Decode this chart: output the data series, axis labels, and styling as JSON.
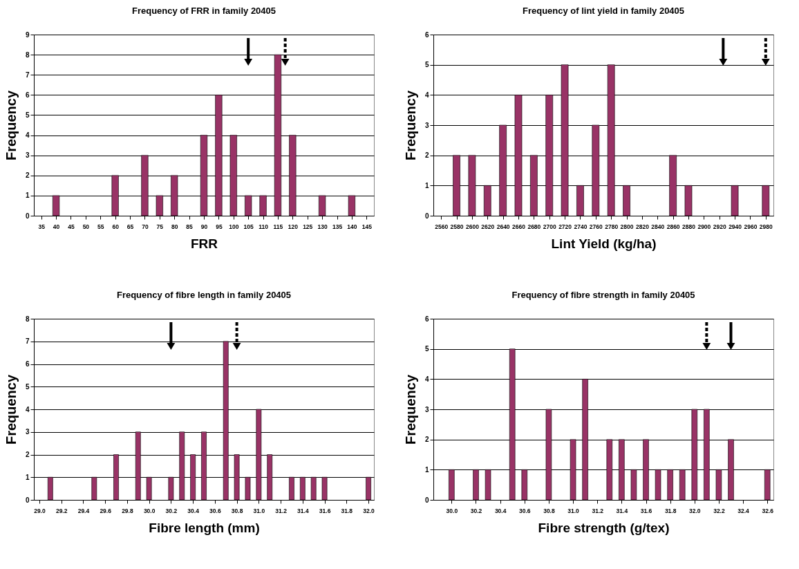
{
  "chart_data": [
    {
      "type": "bar",
      "title": "Frequency of FRR in family 20405",
      "xlabel": "FRR",
      "ylabel": "Frequency",
      "color": "#993366",
      "grid": "y",
      "x": [
        40,
        60,
        70,
        75,
        80,
        90,
        95,
        100,
        105,
        110,
        115,
        120,
        130,
        140
      ],
      "values": [
        1,
        2,
        3,
        1,
        2,
        4,
        6,
        4,
        1,
        1,
        8,
        4,
        1,
        1
      ],
      "xlim": [
        32.5,
        147.5
      ],
      "xticks": [
        35,
        40,
        45,
        50,
        55,
        60,
        65,
        70,
        75,
        80,
        85,
        90,
        95,
        100,
        105,
        110,
        115,
        120,
        125,
        130,
        135,
        140,
        145
      ],
      "ylim": [
        0,
        9
      ],
      "yticks": [
        0,
        1,
        2,
        3,
        4,
        5,
        6,
        7,
        8,
        9
      ],
      "ref_lines": [
        {
          "axis": "x",
          "value": 105,
          "line_style": "solid"
        },
        {
          "axis": "x",
          "value": 117.5,
          "line_style": "dashed"
        }
      ]
    },
    {
      "type": "bar",
      "title": "Frequency of lint yield in family 20405",
      "xlabel": "Lint Yield (kg/ha)",
      "ylabel": "Frequency",
      "color": "#993366",
      "grid": "y",
      "x": [
        2580,
        2600,
        2620,
        2640,
        2660,
        2680,
        2700,
        2720,
        2740,
        2760,
        2780,
        2800,
        2860,
        2880,
        2940,
        2980
      ],
      "values": [
        2,
        2,
        1,
        3,
        4,
        2,
        4,
        5,
        1,
        3,
        5,
        1,
        2,
        1,
        1,
        1
      ],
      "xlim": [
        2550,
        2990
      ],
      "xticks": [
        2560,
        2580,
        2600,
        2620,
        2640,
        2660,
        2680,
        2700,
        2720,
        2740,
        2760,
        2780,
        2800,
        2820,
        2840,
        2860,
        2880,
        2900,
        2920,
        2940,
        2960,
        2980
      ],
      "ylim": [
        0,
        6
      ],
      "yticks": [
        0,
        1,
        2,
        3,
        4,
        5,
        6
      ],
      "ref_lines": [
        {
          "axis": "x",
          "value": 2925,
          "line_style": "solid"
        },
        {
          "axis": "x",
          "value": 2980,
          "line_style": "dashed"
        }
      ]
    },
    {
      "type": "bar",
      "title": "Frequency of fibre length in family 20405",
      "xlabel": "Fibre length (mm)",
      "ylabel": "Frequency",
      "color": "#993366",
      "grid": "y",
      "x": [
        29.1,
        29.5,
        29.7,
        29.9,
        30.0,
        30.2,
        30.3,
        30.4,
        30.5,
        30.7,
        30.8,
        30.9,
        31.0,
        31.1,
        31.3,
        31.4,
        31.5,
        31.6,
        32.0
      ],
      "values": [
        1,
        1,
        2,
        3,
        1,
        1,
        3,
        2,
        3,
        7,
        2,
        1,
        4,
        2,
        1,
        1,
        1,
        1,
        1
      ],
      "xlim": [
        28.95,
        32.05
      ],
      "xticks": [
        {
          "value": 29,
          "label": "29.0"
        },
        29.2,
        29.4,
        29.6,
        29.8,
        {
          "value": 30,
          "label": "30.0"
        },
        30.2,
        30.4,
        30.6,
        30.8,
        {
          "value": 31,
          "label": "31.0"
        },
        31.2,
        31.4,
        31.6,
        31.8,
        {
          "value": 32,
          "label": "32.0"
        }
      ],
      "ylim": [
        0,
        8
      ],
      "yticks": [
        0,
        1,
        2,
        3,
        4,
        5,
        6,
        7,
        8
      ],
      "ref_lines": [
        {
          "axis": "x",
          "value": 30.2,
          "line_style": "solid"
        },
        {
          "axis": "x",
          "value": 30.8,
          "line_style": "dashed"
        }
      ]
    },
    {
      "type": "bar",
      "title": "Frequency of fibre strength in family 20405",
      "xlabel": "Fibre strength (g/tex)",
      "ylabel": "Frequency",
      "color": "#993366",
      "grid": "y",
      "x": [
        30.0,
        30.2,
        30.3,
        30.5,
        30.6,
        30.8,
        31.0,
        31.1,
        31.3,
        31.4,
        31.5,
        31.6,
        31.7,
        31.8,
        31.9,
        32.0,
        32.1,
        32.2,
        32.3,
        32.6
      ],
      "values": [
        1,
        1,
        1,
        5,
        1,
        3,
        2,
        4,
        2,
        2,
        1,
        2,
        1,
        1,
        1,
        3,
        3,
        1,
        2,
        1
      ],
      "xlim": [
        29.85,
        32.65
      ],
      "xticks": [
        {
          "value": 30,
          "label": "30.0"
        },
        30.2,
        30.4,
        30.6,
        30.8,
        {
          "value": 31,
          "label": "31.0"
        },
        31.2,
        31.4,
        31.6,
        31.8,
        {
          "value": 32,
          "label": "32.0"
        },
        32.2,
        32.4,
        32.6
      ],
      "ylim": [
        0,
        6
      ],
      "yticks": [
        0,
        1,
        2,
        3,
        4,
        5,
        6
      ],
      "ref_lines": [
        {
          "axis": "x",
          "value": 32.1,
          "line_style": "dashed"
        },
        {
          "axis": "x",
          "value": 32.3,
          "line_style": "solid"
        }
      ]
    }
  ]
}
